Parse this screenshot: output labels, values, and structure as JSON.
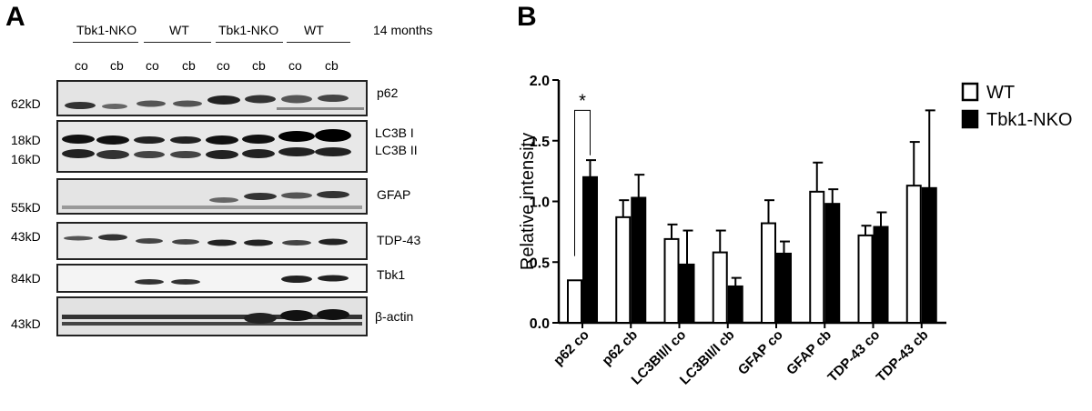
{
  "panel_a": {
    "letter": "A",
    "groups": [
      "Tbk1-NKO",
      "WT",
      "Tbk1-NKO",
      "WT"
    ],
    "age": "14 months",
    "lanes": [
      "co",
      "cb",
      "co",
      "cb",
      "co",
      "cb",
      "co",
      "cb"
    ],
    "blots": [
      {
        "label": "p62",
        "mw": [
          "62kD"
        ]
      },
      {
        "label_lines": [
          "LC3B I",
          "LC3B II"
        ],
        "mw": [
          "18kD",
          "16kD"
        ]
      },
      {
        "label": "GFAP",
        "mw": [
          "55kD"
        ]
      },
      {
        "label": "TDP-43",
        "mw": [
          "43kD"
        ]
      },
      {
        "label": "Tbk1",
        "mw": [
          "84kD"
        ]
      },
      {
        "label": "β-actin",
        "mw": [
          "43kD"
        ]
      }
    ]
  },
  "panel_b": {
    "letter": "B"
  },
  "chart_data": {
    "type": "bar",
    "title": "",
    "xlabel": "",
    "ylabel": "Relative intensity",
    "ylim": [
      0,
      2.0
    ],
    "yticks": [
      "0.0",
      "0.5",
      "1.0",
      "1.5",
      "2.0"
    ],
    "categories": [
      "p62 co",
      "p62 cb",
      "LC3BII/I co",
      "LC3BII/I  cb",
      "GFAP co",
      "GFAP cb",
      "TDP-43 co",
      "TDP-43 cb"
    ],
    "series": [
      {
        "name": "WT",
        "fill": "#ffffff",
        "values": [
          0.35,
          0.87,
          0.69,
          0.58,
          0.82,
          1.08,
          0.72,
          1.13
        ],
        "errors": [
          0.0,
          0.14,
          0.12,
          0.18,
          0.19,
          0.24,
          0.08,
          0.36
        ]
      },
      {
        "name": "Tbk1-NKO",
        "fill": "#000000",
        "values": [
          1.2,
          1.03,
          0.48,
          0.3,
          0.57,
          0.98,
          0.79,
          1.11
        ],
        "errors": [
          0.14,
          0.19,
          0.28,
          0.07,
          0.1,
          0.12,
          0.12,
          0.64
        ]
      }
    ],
    "annotations": [
      {
        "text": "*",
        "between": "p62 co"
      }
    ],
    "legend": "top-right"
  }
}
